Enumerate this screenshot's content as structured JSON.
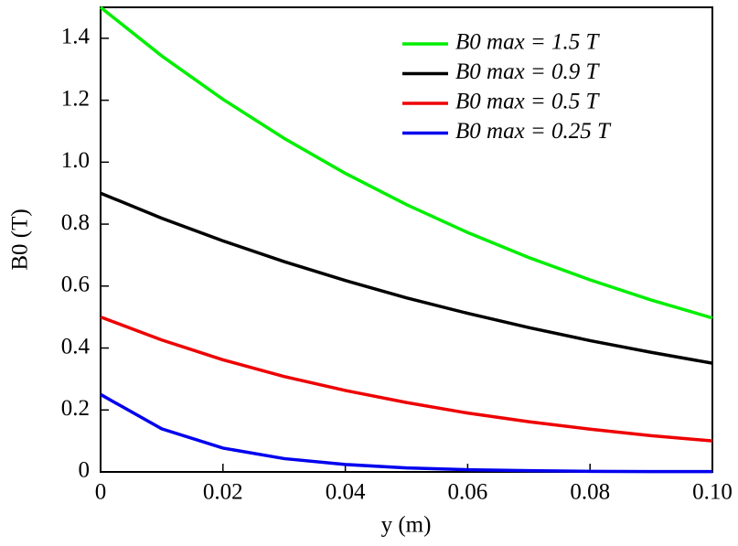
{
  "chart_data": {
    "type": "line",
    "x_label": "y (m)",
    "y_label": "B0 (T)",
    "x": [
      0,
      0.01,
      0.02,
      0.03,
      0.04,
      0.05,
      0.06,
      0.07,
      0.08,
      0.09,
      0.1
    ],
    "series": [
      {
        "name": "B0 max = 1.5 T",
        "color": "#00ee00",
        "values": [
          1.5,
          1.343,
          1.203,
          1.077,
          0.964,
          0.863,
          0.773,
          0.692,
          0.62,
          0.555,
          0.497
        ]
      },
      {
        "name": "B0 max = 0.9 T",
        "color": "#000000",
        "values": [
          0.9,
          0.819,
          0.746,
          0.679,
          0.618,
          0.562,
          0.512,
          0.466,
          0.424,
          0.386,
          0.351
        ]
      },
      {
        "name": "B0 max = 0.5 T",
        "color": "#ee0000",
        "values": [
          0.5,
          0.426,
          0.362,
          0.308,
          0.263,
          0.224,
          0.19,
          0.162,
          0.138,
          0.117,
          0.1
        ]
      },
      {
        "name": "B0 max = 0.25 T",
        "color": "#0000ee",
        "values": [
          0.25,
          0.139,
          0.077,
          0.043,
          0.024,
          0.013,
          0.007,
          0.004,
          0.002,
          0.001,
          0.001
        ]
      }
    ],
    "xlim": [
      0,
      0.1
    ],
    "ylim": [
      0,
      1.5
    ],
    "xticks": [
      0,
      0.02,
      0.04,
      0.06,
      0.08,
      {
        "value": 0.1,
        "label": "0.10"
      }
    ],
    "yticks": [
      0,
      0.2,
      0.4,
      0.6,
      0.8,
      {
        "value": 1.0,
        "label": "1.0"
      },
      1.2,
      1.4
    ],
    "legend": "upper right"
  }
}
